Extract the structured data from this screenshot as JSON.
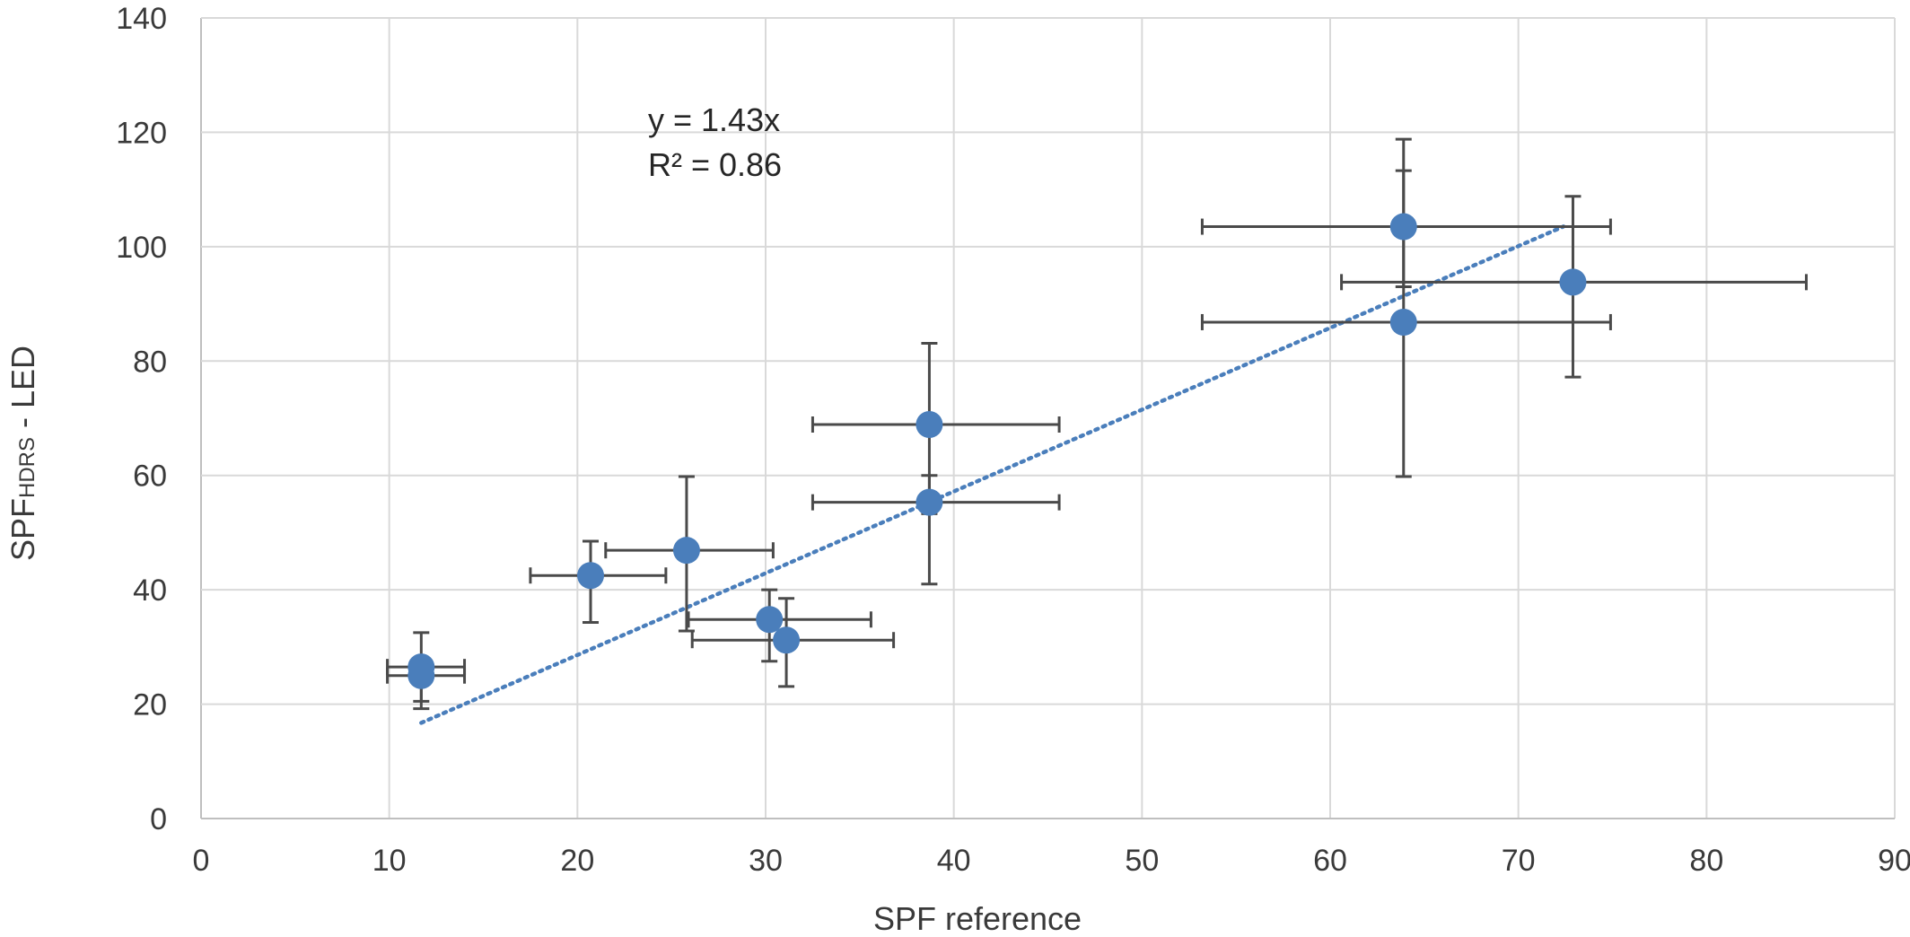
{
  "chart_data": {
    "type": "scatter",
    "xlabel": "SPF reference",
    "ylabel_main": "SPF",
    "ylabel_sub": "HDRS",
    "ylabel_suffix": " - LED",
    "xlim": [
      0,
      90
    ],
    "ylim": [
      0,
      140
    ],
    "x_ticks": [
      0,
      10,
      20,
      30,
      40,
      50,
      60,
      70,
      80,
      90
    ],
    "y_ticks": [
      0,
      20,
      40,
      60,
      80,
      100,
      120,
      140
    ],
    "grid": true,
    "marker_color": "#4a7ebb",
    "errorbar_color": "#4a4a4a",
    "points": [
      {
        "x": 11.7,
        "y": 26.5,
        "xerr": [
          9.9,
          14.0
        ],
        "yerr": [
          20.5,
          32.5
        ]
      },
      {
        "x": 11.7,
        "y": 25.0,
        "xerr": [
          9.9,
          14.0
        ],
        "yerr": [
          19.2,
          28.0
        ]
      },
      {
        "x": 20.7,
        "y": 42.5,
        "xerr": [
          17.5,
          24.7
        ],
        "yerr": [
          34.3,
          48.5
        ]
      },
      {
        "x": 25.8,
        "y": 46.9,
        "xerr": [
          21.5,
          30.4
        ],
        "yerr": [
          32.8,
          59.8
        ]
      },
      {
        "x": 30.2,
        "y": 34.8,
        "xerr": [
          25.9,
          35.6
        ],
        "yerr": [
          27.5,
          40.0
        ]
      },
      {
        "x": 31.1,
        "y": 31.2,
        "xerr": [
          26.1,
          36.8
        ],
        "yerr": [
          23.1,
          38.5
        ]
      },
      {
        "x": 38.7,
        "y": 68.9,
        "xerr": [
          32.5,
          45.6
        ],
        "yerr": [
          53.3,
          83.1
        ]
      },
      {
        "x": 38.7,
        "y": 55.3,
        "xerr": [
          32.5,
          45.6
        ],
        "yerr": [
          41.0,
          60.0
        ]
      },
      {
        "x": 63.9,
        "y": 103.5,
        "xerr": [
          53.2,
          74.9
        ],
        "yerr": [
          93.0,
          118.8
        ]
      },
      {
        "x": 63.9,
        "y": 86.8,
        "xerr": [
          53.2,
          74.9
        ],
        "yerr": [
          59.8,
          113.3
        ]
      },
      {
        "x": 72.9,
        "y": 93.8,
        "xerr": [
          60.6,
          85.3
        ],
        "yerr": [
          77.2,
          108.8
        ]
      }
    ],
    "trendline": {
      "type": "linear-through-origin",
      "slope": 1.43,
      "x_range": [
        11.7,
        72.4
      ],
      "color": "#4a7ebb",
      "style": "dotted"
    },
    "annotations": {
      "equation": "y = 1.43x",
      "r_squared": "R² = 0.86"
    }
  }
}
